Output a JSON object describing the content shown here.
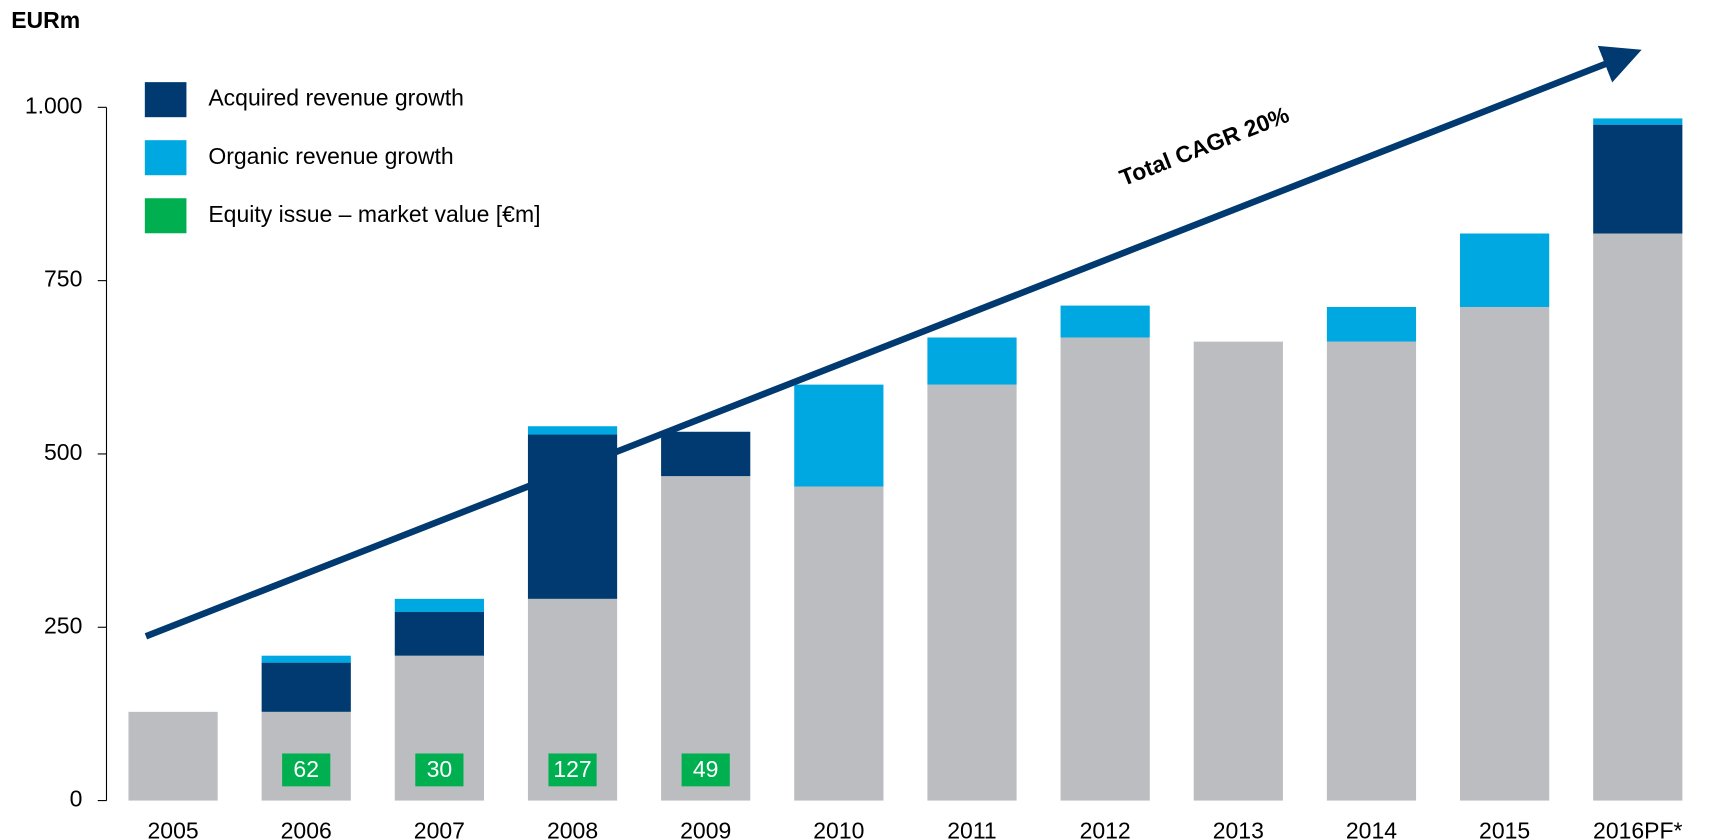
{
  "chart_data": {
    "type": "bar",
    "stacked": true,
    "y_unit_label": "EURm",
    "categories": [
      "2005",
      "2006",
      "2007",
      "2008",
      "2009",
      "2010",
      "2011",
      "2012",
      "2013",
      "2014",
      "2015",
      "2016PF*"
    ],
    "series": [
      {
        "color": "#bcbdc0",
        "values": [
          128,
          128,
          209,
          291,
          468,
          453,
          600,
          668,
          662,
          662,
          712,
          818
        ]
      },
      {
        "name": "Acquired revenue growth",
        "color": "#003a70",
        "values": [
          0,
          71,
          63,
          237,
          64,
          0,
          0,
          0,
          0,
          0,
          0,
          157
        ]
      },
      {
        "name": "Organic revenue growth",
        "color": "#00a8e1",
        "values": [
          0,
          10,
          19,
          12,
          0,
          147,
          68,
          46,
          0,
          50,
          106,
          9
        ]
      }
    ],
    "equity": {
      "name": "Equity issue – market value [€m]",
      "color": "#00b050",
      "values": [
        null,
        62,
        30,
        127,
        49,
        null,
        null,
        null,
        null,
        null,
        null,
        null
      ]
    },
    "annotation": "Total CAGR 20%",
    "ylim": [
      0,
      1000
    ],
    "yticks": [
      0,
      250,
      500,
      750,
      {
        "value": 1000,
        "label": "1.000"
      }
    ]
  }
}
